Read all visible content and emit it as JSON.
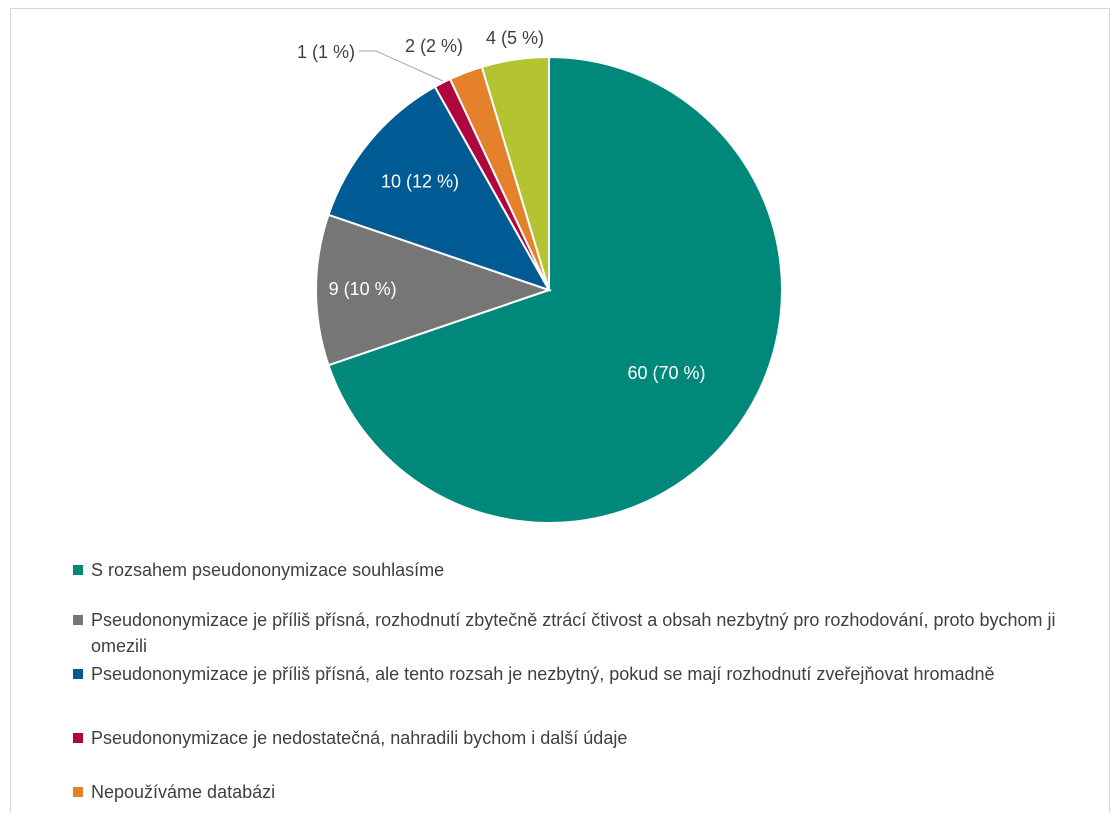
{
  "chart_data": {
    "type": "pie",
    "title": "",
    "slices": [
      {
        "name": "S rozsahem pseudononymizace souhlasíme",
        "value": 60,
        "percent": 70,
        "label": "60 (70 %)",
        "color": "#00897B"
      },
      {
        "name": "Pseudononymizace je příliš přísná, rozhodnutí zbytečně ztrácí čtivost a obsah nezbytný pro rozhodování, proto bychom ji omezili",
        "value": 9,
        "percent": 10,
        "label": "9 (10 %)",
        "color": "#767676"
      },
      {
        "name": "Pseudononymizace je příliš přísná, ale tento rozsah je nezbytný, pokud se mají rozhodnutí zveřejňovat hromadně",
        "value": 10,
        "percent": 12,
        "label": "10 (12 %)",
        "color": "#005B94"
      },
      {
        "name": "Pseudononymizace je nedostatečná, nahradili bychom i další údaje",
        "value": 1,
        "percent": 1,
        "label": "1 (1 %)",
        "color": "#B0063F"
      },
      {
        "name": "Nepoužíváme databázi",
        "value": 2,
        "percent": 2,
        "label": "2 (2 %)",
        "color": "#E4812A"
      },
      {
        "name": "",
        "value": 4,
        "percent": 5,
        "label": "4 (5 %)",
        "color": "#B4C431"
      }
    ],
    "legend_position": "bottom",
    "legend_entries": [
      "S rozsahem pseudononymizace souhlasíme",
      "Pseudononymizace je příliš přísná, rozhodnutí zbytečně ztrácí čtivost a obsah nezbytný pro rozhodování, proto bychom ji omezili",
      "Pseudononymizace je příliš přísná, ale tento rozsah je nezbytný, pokud se mají rozhodnutí zveřejňovat hromadně",
      "Pseudononymizace je nedostatečná, nahradili bychom i další údaje",
      "Nepoužíváme databázi"
    ]
  }
}
